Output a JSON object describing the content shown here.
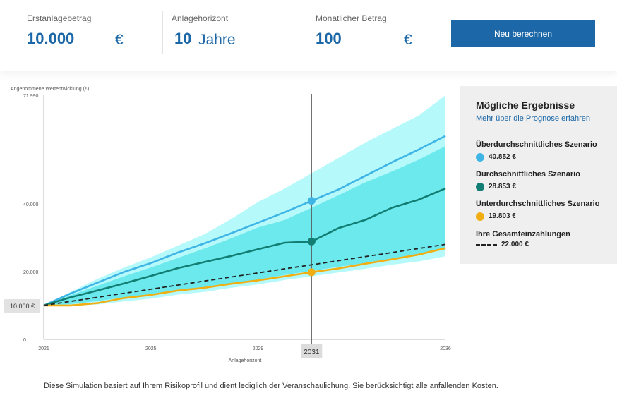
{
  "inputs": {
    "initial": {
      "label": "Erstanlagebetrag",
      "value": "10.000",
      "unit": "€"
    },
    "horizon": {
      "label": "Anlagehorizont",
      "value": "10",
      "unit": "Jahre"
    },
    "monthly": {
      "label": "Monatlicher Betrag",
      "value": "100",
      "unit": "€"
    },
    "button_label": "Neu berechnen"
  },
  "colors": {
    "accent": "#1b67a7",
    "band_outer": "#b6f9fb",
    "band_inner": "#6ce9ec",
    "above": "#3fb5e6",
    "average": "#127e73",
    "below": "#f0ae12",
    "contrib": "#222222"
  },
  "chart_data": {
    "type": "area",
    "ylabel": "Angenommene Wertentwicklung (€)",
    "xlabel": "Anlagehorizont",
    "ylim": [
      0,
      71990
    ],
    "xlim": [
      2021,
      2036
    ],
    "y_ticks": [
      "71.990",
      "40.000",
      "20.000",
      "0"
    ],
    "x_ticks": [
      "2021",
      "2025",
      "2029",
      "2036"
    ],
    "start_label": "10.000 €",
    "marker_label": "2031",
    "marker_year": 2031,
    "x": [
      2021,
      2022,
      2023,
      2024,
      2025,
      2026,
      2027,
      2028,
      2029,
      2030,
      2031,
      2032,
      2033,
      2034,
      2035,
      2036
    ],
    "series": [
      {
        "key": "above",
        "values": [
          10000,
          13500,
          16700,
          19900,
          22500,
          25600,
          28300,
          31300,
          34400,
          37500,
          40852,
          44200,
          48200,
          52200,
          56000,
          60000
        ]
      },
      {
        "key": "average",
        "values": [
          10000,
          12400,
          14400,
          16500,
          18700,
          21000,
          22800,
          24600,
          26600,
          28500,
          28853,
          32800,
          35200,
          38800,
          41200,
          44500
        ]
      },
      {
        "key": "below",
        "values": [
          10000,
          10000,
          10700,
          12200,
          13100,
          14400,
          15200,
          16400,
          17400,
          18600,
          19803,
          20900,
          22300,
          23600,
          25000,
          26900
        ]
      },
      {
        "key": "contrib",
        "values": [
          10000,
          11200,
          12400,
          13600,
          14800,
          16000,
          17200,
          18400,
          19600,
          20800,
          22000,
          23200,
          24400,
          25600,
          26800,
          28000
        ]
      }
    ],
    "band_outer_upper": [
      10000,
      14000,
      17800,
      21200,
      24200,
      27600,
      31000,
      35500,
      40500,
      44500,
      49000,
      53500,
      58000,
      62000,
      66000,
      71990
    ],
    "band_outer_lower": [
      10000,
      9900,
      10300,
      11200,
      12000,
      13200,
      14000,
      15200,
      16200,
      17500,
      18600,
      19700,
      20800,
      22000,
      23000,
      24500
    ],
    "band_inner_upper": [
      10000,
      13000,
      15800,
      18600,
      21200,
      24000,
      26800,
      29800,
      33000,
      35200,
      38800,
      42500,
      46300,
      49500,
      53000,
      57000
    ],
    "band_inner_lower": [
      10000,
      10400,
      11300,
      12400,
      13300,
      14500,
      15400,
      16500,
      17600,
      19000,
      20200,
      21400,
      22500,
      23800,
      25000,
      26500
    ]
  },
  "legend": {
    "title": "Mögliche Ergebnisse",
    "link": "Mehr über die Prognose erfahren",
    "items": [
      {
        "label": "Überdurchschnittliches Szenario",
        "value": "40.852 €",
        "color": "#3fb5e6"
      },
      {
        "label": "Durchschnittliches Szenario",
        "value": "28.853 €",
        "color": "#127e73"
      },
      {
        "label": "Unterdurchschnittliches Szenario",
        "value": "19.803 €",
        "color": "#f0ae12"
      }
    ],
    "contrib": {
      "label": "Ihre Gesamteinzahlungen",
      "value": "22.000 €"
    }
  },
  "footer_note": "Diese Simulation basiert auf Ihrem Risikoprofil und dient lediglich der Veranschaulichung. Sie berücksichtigt alle anfallenden Kosten."
}
